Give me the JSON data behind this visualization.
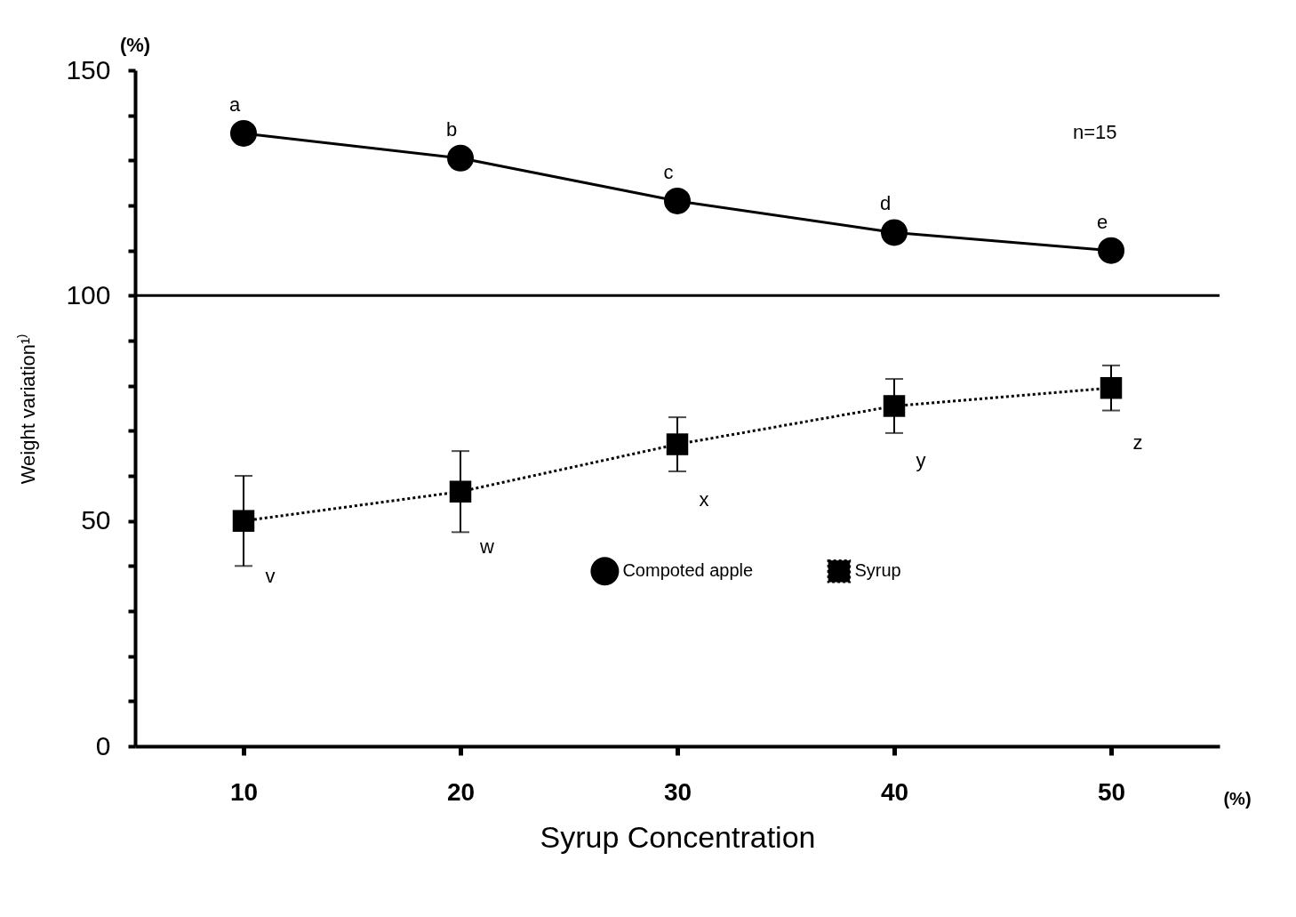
{
  "chart_data": {
    "type": "line",
    "xlabel": "Syrup  Concentration",
    "ylabel": "Weight variation¹⁾",
    "x": [
      10,
      20,
      30,
      40,
      50
    ],
    "series": [
      {
        "name": "Compoted apple",
        "color": "#000000",
        "values": [
          136,
          130.5,
          121,
          114,
          110
        ],
        "marker": "circle",
        "line_style": "solid"
      },
      {
        "name": "Syrup",
        "color": "#000000",
        "values": [
          50,
          56.5,
          67,
          75.5,
          79.5
        ],
        "errors": [
          10,
          9,
          6,
          6,
          5
        ],
        "marker": "square",
        "line_style": "dotted"
      }
    ],
    "xlim": [
      5,
      55
    ],
    "xticks": [
      10,
      20,
      30,
      40,
      50
    ],
    "ylim": [
      0,
      150
    ],
    "yticks": [
      0,
      {
        "value": 10,
        "label": null
      },
      {
        "value": 20,
        "label": null
      },
      {
        "value": 30,
        "label": null
      },
      {
        "value": 40,
        "label": null
      },
      50,
      {
        "value": 60,
        "label": null
      },
      {
        "value": 70,
        "label": null
      },
      {
        "value": 80,
        "label": null
      },
      {
        "value": 90,
        "label": null
      },
      100,
      {
        "value": 110,
        "label": null
      },
      {
        "value": 120,
        "label": null
      },
      {
        "value": 130,
        "label": null
      },
      {
        "value": 140,
        "label": null
      },
      150
    ],
    "ref_lines": [
      {
        "axis": "y",
        "value": 100,
        "color": "#000000",
        "line_style": "solid"
      }
    ],
    "grid": false,
    "legend": "bottom right",
    "annotations": [
      {
        "text": "a",
        "x": 10,
        "y": 136
      },
      {
        "text": "b",
        "x": 20,
        "y": 130.5
      },
      {
        "text": "c",
        "x": 30,
        "y": 121
      },
      {
        "text": "d",
        "x": 40,
        "y": 114
      },
      {
        "text": "e",
        "x": 50,
        "y": 110
      },
      {
        "text": "v",
        "x": 10,
        "y": 50
      },
      {
        "text": "w",
        "x": 20,
        "y": 56.5
      },
      {
        "text": "x",
        "x": 30,
        "y": 67
      },
      {
        "text": "y",
        "x": 40,
        "y": 75.5
      },
      {
        "text": "z",
        "x": 50,
        "y": 79.5
      },
      "n=15",
      "(%)",
      "(%)"
    ]
  }
}
